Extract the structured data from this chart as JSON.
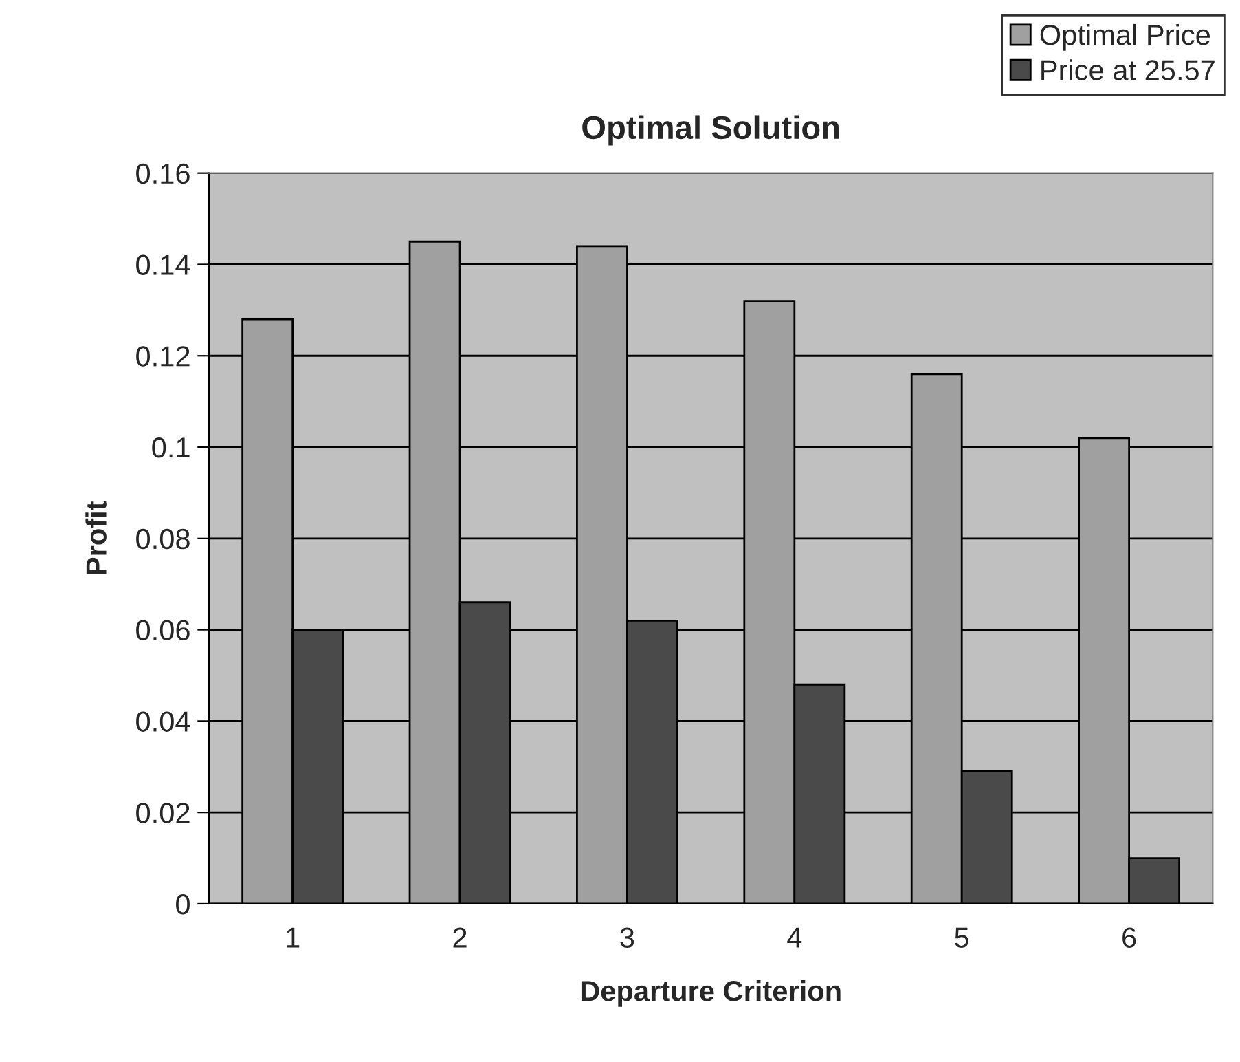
{
  "chart_data": {
    "type": "bar",
    "title": "Optimal Solution",
    "xlabel": "Departure Criterion",
    "ylabel": "Profit",
    "categories": [
      "1",
      "2",
      "3",
      "4",
      "5",
      "6"
    ],
    "series": [
      {
        "name": "Optimal Price",
        "color": "#a0a0a0",
        "values": [
          0.128,
          0.145,
          0.144,
          0.132,
          0.116,
          0.102
        ]
      },
      {
        "name": "Price at 25.57",
        "color": "#4a4a4a",
        "values": [
          0.06,
          0.066,
          0.062,
          0.048,
          0.029,
          0.01
        ]
      }
    ],
    "ylim": [
      0,
      0.16
    ],
    "yticks": [
      0,
      0.02,
      0.04,
      0.06,
      0.08,
      0.1,
      0.12,
      0.14,
      0.16
    ],
    "grid": "y",
    "legend": "top right"
  }
}
